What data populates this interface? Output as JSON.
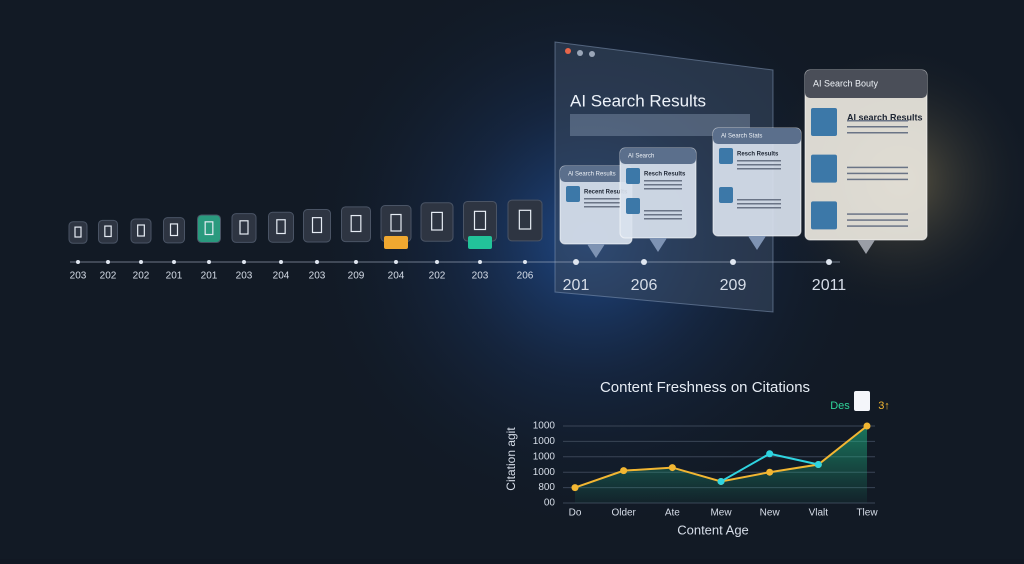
{
  "timeline": {
    "labels": [
      "203",
      "202",
      "202",
      "201",
      "201",
      "203",
      "204",
      "203",
      "209",
      "204",
      "202",
      "203",
      "206",
      "201",
      "206",
      "209",
      "2011"
    ]
  },
  "window": {
    "title": "AI Search Results"
  },
  "cards": [
    {
      "title": "Al Search Results",
      "heading": "Recent Results"
    },
    {
      "title": "AI Search",
      "heading": "Resch Results"
    },
    {
      "title": "Al Search Stats",
      "heading": "Resch Results"
    },
    {
      "title": "AI Search Bouty",
      "heading": "AI search Results"
    }
  ],
  "chart_data": {
    "type": "line",
    "title": "Content Freshness on Citations",
    "x_label": "Content Age",
    "y_label": "Citation agit",
    "badge": "Des",
    "badge_value": "3↑",
    "categories": [
      "Do",
      "Older",
      "Ate",
      "Mew",
      "New",
      "Vlalt",
      "Tlew"
    ],
    "ylim": [
      0,
      5
    ],
    "yticks": [
      0,
      1,
      2,
      3,
      4,
      5
    ],
    "ytick_labels": [
      "00",
      "800",
      "1000",
      "1000",
      "1000",
      "1000"
    ],
    "grid": true,
    "series": [
      {
        "color": "#f2b632",
        "values": [
          1.0,
          2.1,
          2.3,
          1.4,
          2.0,
          2.5,
          5.0
        ]
      },
      {
        "color": "#2fd4e0",
        "values": [
          null,
          null,
          null,
          1.4,
          3.2,
          2.5,
          null
        ]
      }
    ]
  }
}
